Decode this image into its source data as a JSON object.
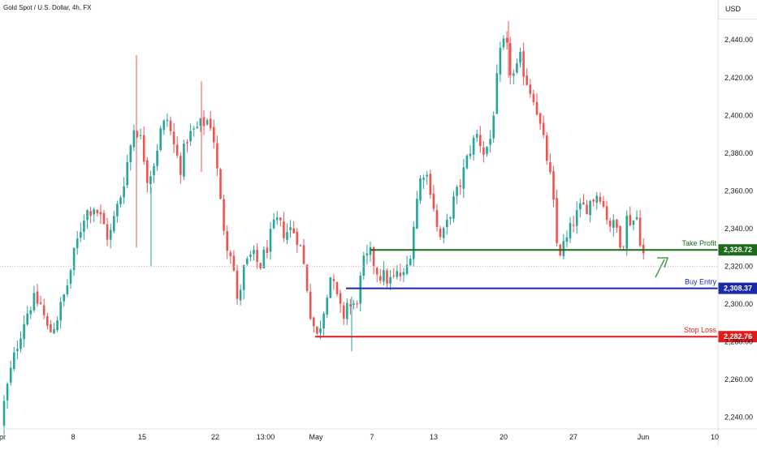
{
  "header": {
    "symbol_title": "Gold Spot / U.S. Dollar, 4h, FX",
    "currency": "USD"
  },
  "chart_data": {
    "type": "candlestick",
    "title": "Gold Spot / U.S. Dollar, 4h, FX",
    "unit": "USD",
    "ylim": [
      2233,
      2456
    ],
    "y_ticks": [
      2240,
      2260,
      2280,
      2300,
      2320,
      2340,
      2360,
      2380,
      2400,
      2420,
      2440
    ],
    "y_tick_labels": [
      "2,240.00",
      "2,260.00",
      "2,280.00",
      "2,300.00",
      "2,320.00",
      "2,340.00",
      "2,360.00",
      "2,380.00",
      "2,400.00",
      "2,420.00",
      "2,440.00"
    ],
    "x_tick_labels": [
      "Apr",
      "8",
      "15",
      "22",
      "13:00",
      "May",
      "7",
      "13",
      "20",
      "27",
      "Jun",
      "10"
    ],
    "grid": false,
    "colors": {
      "up": "#26a69a",
      "down": "#ef5350",
      "take_profit": "#1b6b1b",
      "buy_entry": "#1a2aa8",
      "stop_loss": "#e21b1b",
      "current_price": "#f7a9a8",
      "arrow": "#43a047"
    },
    "levels": [
      {
        "name": "Take Profit",
        "price": 2328.72,
        "price_label": "2,328.72"
      },
      {
        "name": "Buy Entry",
        "price": 2308.37,
        "price_label": "2,308.37"
      },
      {
        "name": "Stop Loss",
        "price": 2282.76,
        "price_label": "2,282.76"
      }
    ],
    "current_price": 2320.0,
    "price_anchors": [
      [
        0,
        2236
      ],
      [
        8,
        2254
      ],
      [
        14,
        2266
      ],
      [
        22,
        2280
      ],
      [
        30,
        2292
      ],
      [
        40,
        2302
      ],
      [
        50,
        2300
      ],
      [
        60,
        2284
      ],
      [
        68,
        2290
      ],
      [
        76,
        2300
      ],
      [
        84,
        2312
      ],
      [
        92,
        2328
      ],
      [
        104,
        2348
      ],
      [
        116,
        2352
      ],
      [
        126,
        2344
      ],
      [
        134,
        2334
      ],
      [
        142,
        2348
      ],
      [
        150,
        2360
      ],
      [
        158,
        2378
      ],
      [
        166,
        2396
      ],
      [
        174,
        2386
      ],
      [
        182,
        2366
      ],
      [
        190,
        2376
      ],
      [
        198,
        2392
      ],
      [
        206,
        2398
      ],
      [
        214,
        2384
      ],
      [
        222,
        2372
      ],
      [
        230,
        2388
      ],
      [
        240,
        2392
      ],
      [
        250,
        2396
      ],
      [
        258,
        2398
      ],
      [
        264,
        2386
      ],
      [
        270,
        2358
      ],
      [
        278,
        2334
      ],
      [
        286,
        2326
      ],
      [
        292,
        2300
      ],
      [
        300,
        2318
      ],
      [
        310,
        2326
      ],
      [
        320,
        2320
      ],
      [
        330,
        2332
      ],
      [
        340,
        2344
      ],
      [
        350,
        2338
      ],
      [
        360,
        2340
      ],
      [
        368,
        2334
      ],
      [
        376,
        2316
      ],
      [
        382,
        2296
      ],
      [
        390,
        2282
      ],
      [
        398,
        2296
      ],
      [
        406,
        2316
      ],
      [
        414,
        2304
      ],
      [
        422,
        2292
      ],
      [
        428,
        2302
      ],
      [
        434,
        2296
      ],
      [
        440,
        2304
      ],
      [
        448,
        2322
      ],
      [
        456,
        2326
      ],
      [
        466,
        2316
      ],
      [
        474,
        2314
      ],
      [
        482,
        2312
      ],
      [
        490,
        2316
      ],
      [
        498,
        2314
      ],
      [
        506,
        2330
      ],
      [
        512,
        2352
      ],
      [
        520,
        2372
      ],
      [
        528,
        2366
      ],
      [
        534,
        2352
      ],
      [
        540,
        2334
      ],
      [
        548,
        2338
      ],
      [
        556,
        2352
      ],
      [
        564,
        2360
      ],
      [
        572,
        2372
      ],
      [
        580,
        2384
      ],
      [
        588,
        2390
      ],
      [
        596,
        2380
      ],
      [
        604,
        2388
      ],
      [
        610,
        2412
      ],
      [
        616,
        2432
      ],
      [
        622,
        2440
      ],
      [
        628,
        2424
      ],
      [
        634,
        2420
      ],
      [
        640,
        2430
      ],
      [
        646,
        2422
      ],
      [
        652,
        2414
      ],
      [
        658,
        2410
      ],
      [
        664,
        2396
      ],
      [
        670,
        2384
      ],
      [
        676,
        2372
      ],
      [
        682,
        2350
      ],
      [
        686,
        2330
      ],
      [
        690,
        2328
      ],
      [
        698,
        2334
      ],
      [
        706,
        2344
      ],
      [
        714,
        2350
      ],
      [
        722,
        2352
      ],
      [
        730,
        2356
      ],
      [
        738,
        2360
      ],
      [
        744,
        2350
      ],
      [
        752,
        2342
      ],
      [
        760,
        2340
      ],
      [
        766,
        2330
      ],
      [
        772,
        2346
      ],
      [
        778,
        2344
      ],
      [
        784,
        2346
      ],
      [
        790,
        2330
      ],
      [
        796,
        2320
      ]
    ]
  }
}
